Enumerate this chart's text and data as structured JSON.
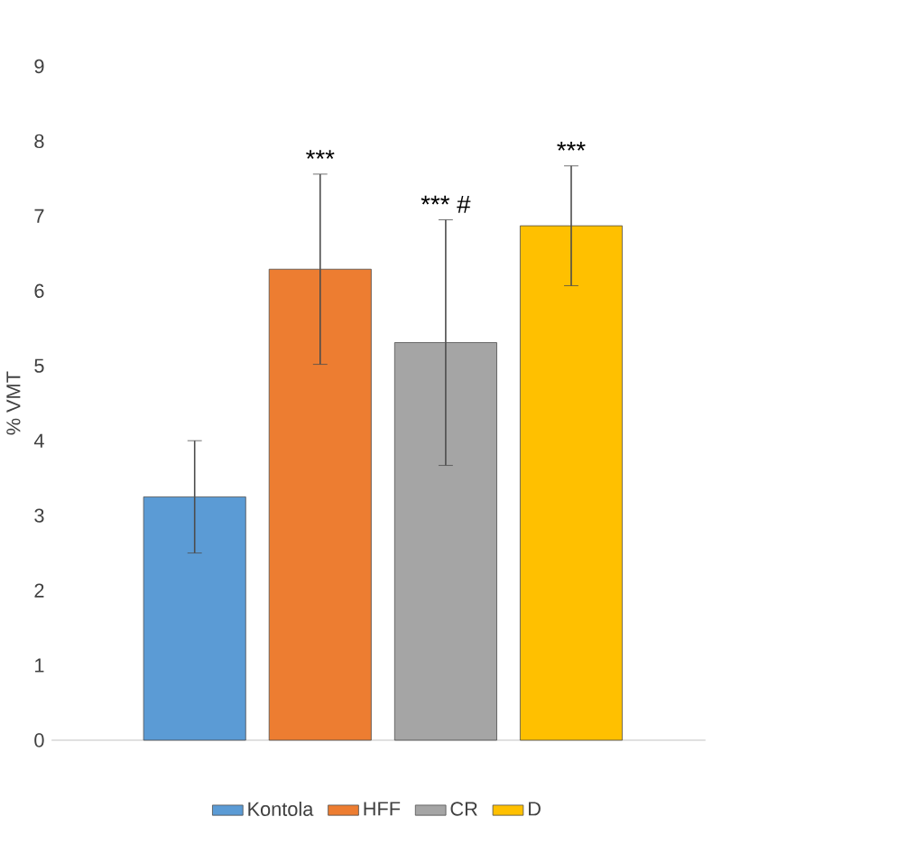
{
  "chart_data": {
    "type": "bar",
    "ylabel": "% VMT",
    "categories": [
      null
    ],
    "series": [
      {
        "name": "Kontola",
        "color": "#5b9bd5",
        "values": [
          3.25
        ],
        "errors": [
          0.75
        ]
      },
      {
        "name": "HFF",
        "color": "#ed7d31",
        "values": [
          6.29
        ],
        "errors": [
          1.27
        ]
      },
      {
        "name": "CR",
        "color": "#a5a5a5",
        "values": [
          5.31
        ],
        "errors": [
          1.64
        ]
      },
      {
        "name": "D",
        "color": "#ffc000",
        "values": [
          6.87
        ],
        "errors": [
          0.8
        ]
      }
    ],
    "ylim": [
      0,
      9
    ],
    "yticks": [
      0,
      1,
      2,
      3,
      4,
      5,
      6,
      7,
      8,
      9
    ],
    "tick_labels": "y",
    "legend": "bottom",
    "annotations": [
      "***",
      "*** #",
      "***"
    ]
  }
}
